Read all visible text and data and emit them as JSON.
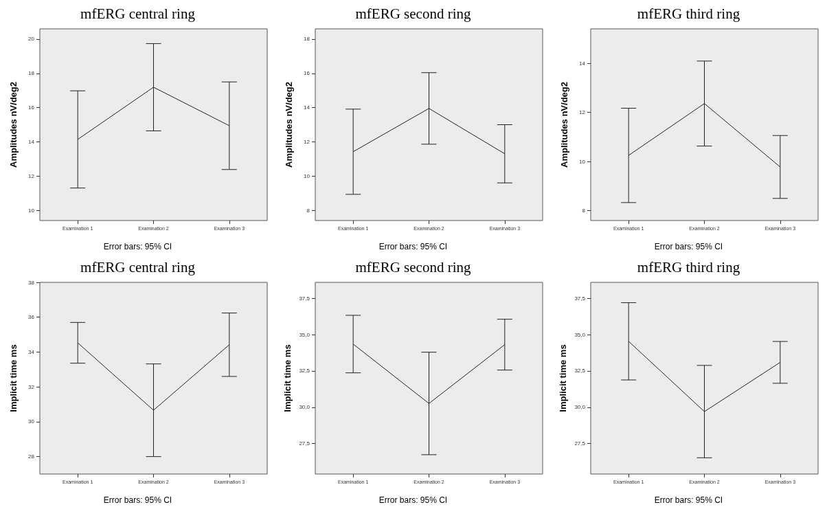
{
  "chart_data": [
    {
      "type": "line",
      "title": "mfERG central ring",
      "ylabel": "Amplitudes nV/deg2",
      "annotations": [
        "Error bars: 95% CI"
      ],
      "categories": [
        "Examination 1",
        "Examination 2",
        "Examination 3"
      ],
      "series": [
        {
          "color": "#222222",
          "values": [
            14.14,
            17.19,
            14.94
          ],
          "errors": [
            2.84,
            2.55,
            2.56
          ]
        }
      ],
      "ylim": [
        9.4,
        20.6
      ],
      "yticks": [
        10,
        12,
        14,
        16,
        18,
        20
      ],
      "grid": false,
      "marker": "none",
      "line_style": "solid"
    },
    {
      "type": "line",
      "title": "mfERG second ring",
      "ylabel": "Amplitudes nV/deg2",
      "annotations": [
        "Error bars: 95% CI"
      ],
      "categories": [
        "Examination 1",
        "Examination 2",
        "Examination 3"
      ],
      "series": [
        {
          "color": "#222222",
          "values": [
            11.42,
            13.95,
            11.3
          ],
          "errors": [
            2.49,
            2.09,
            1.7
          ]
        }
      ],
      "ylim": [
        7.4,
        18.6
      ],
      "yticks": [
        8,
        10,
        12,
        14,
        16,
        18
      ],
      "grid": false,
      "marker": "none",
      "line_style": "solid"
    },
    {
      "type": "line",
      "title": "mfERG third ring",
      "ylabel": "Amplitudes nV/deg2",
      "annotations": [
        "Error bars: 95% CI"
      ],
      "categories": [
        "Examination 1",
        "Examination 2",
        "Examination 3"
      ],
      "series": [
        {
          "color": "#222222",
          "values": [
            10.25,
            12.36,
            9.78
          ],
          "errors": [
            1.92,
            1.73,
            1.28
          ]
        }
      ],
      "ylim": [
        7.6,
        15.4
      ],
      "yticks": [
        8,
        10,
        12,
        14
      ],
      "grid": false,
      "marker": "none",
      "line_style": "solid"
    },
    {
      "type": "line",
      "title": "mfERG central ring",
      "ylabel": "Implicit time ms",
      "annotations": [
        "Error bars: 95% CI"
      ],
      "categories": [
        "Examination 1",
        "Examination 2",
        "Examination 3"
      ],
      "series": [
        {
          "color": "#222222",
          "values": [
            34.53,
            30.66,
            34.42
          ],
          "errors": [
            1.17,
            2.66,
            1.82
          ]
        }
      ],
      "ylim": [
        27,
        38
      ],
      "yticks": [
        28,
        30,
        32,
        34,
        36,
        38
      ],
      "grid": false,
      "marker": "none",
      "line_style": "solid"
    },
    {
      "type": "line",
      "title": "mfERG second ring",
      "ylabel": "Implicit time ms",
      "annotations": [
        "Error bars: 95% CI"
      ],
      "categories": [
        "Examination 1",
        "Examination 2",
        "Examination 3"
      ],
      "series": [
        {
          "color": "#222222",
          "values": [
            34.35,
            30.26,
            34.31
          ],
          "errors": [
            1.98,
            3.53,
            1.75
          ]
        }
      ],
      "ylim": [
        25.4,
        38.6
      ],
      "yticks": [
        {
          "value": 27.5,
          "label": "27,5"
        },
        {
          "value": 30,
          "label": "30,0"
        },
        {
          "value": 32.5,
          "label": "32,5"
        },
        {
          "value": 35,
          "label": "35,0"
        },
        {
          "value": 37.5,
          "label": "37,5"
        }
      ],
      "grid": false,
      "marker": "none",
      "line_style": "solid"
    },
    {
      "type": "line",
      "title": "mfERG third ring",
      "ylabel": "Implicit time ms",
      "annotations": [
        "Error bars: 95% CI"
      ],
      "categories": [
        "Examination 1",
        "Examination 2",
        "Examination 3"
      ],
      "series": [
        {
          "color": "#222222",
          "values": [
            34.54,
            29.7,
            33.09
          ],
          "errors": [
            2.66,
            3.18,
            1.44
          ]
        }
      ],
      "ylim": [
        25.4,
        38.6
      ],
      "yticks": [
        {
          "value": 27.5,
          "label": "27,5"
        },
        {
          "value": 30,
          "label": "30,0"
        },
        {
          "value": 32.5,
          "label": "32,5"
        },
        {
          "value": 35,
          "label": "35,0"
        },
        {
          "value": 37.5,
          "label": "37,5"
        }
      ],
      "grid": false,
      "marker": "none",
      "line_style": "solid"
    }
  ]
}
